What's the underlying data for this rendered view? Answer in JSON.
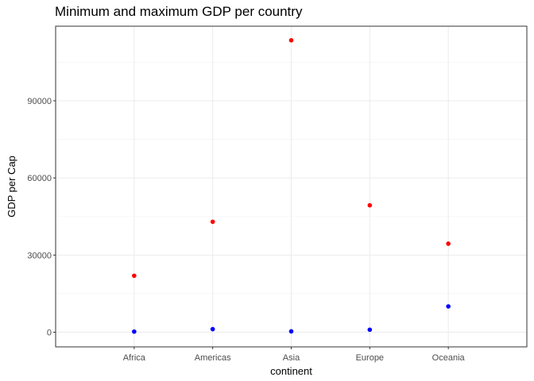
{
  "chart_data": {
    "type": "scatter",
    "title": "Minimum and maximum GDP per country",
    "xlabel": "continent",
    "ylabel": "GDP per Cap",
    "categories": [
      "Africa",
      "Americas",
      "Asia",
      "Europe",
      "Oceania"
    ],
    "y_ticks": [
      0,
      30000,
      60000,
      90000
    ],
    "ylim": [
      -5700,
      119000
    ],
    "grid": true,
    "series": [
      {
        "color": "#ff0000",
        "values": [
          21951,
          42952,
          113523,
          49357,
          34435
        ]
      },
      {
        "color": "#0000ff",
        "values": [
          241,
          1202,
          331,
          974,
          10040
        ]
      }
    ]
  }
}
